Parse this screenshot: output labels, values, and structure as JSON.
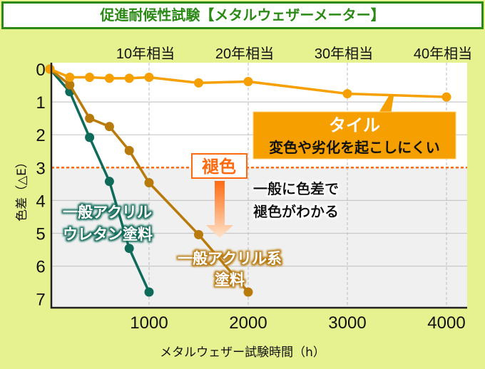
{
  "title": "促進耐候性試験【メタルウェザーメーター】",
  "chart_data": {
    "type": "line",
    "title": "促進耐候性試験【メタルウェザーメーター】",
    "xlabel": "メタルウェザー試験時間（h）",
    "ylabel": "色差（△E）",
    "xlim": [
      0,
      4200
    ],
    "ylim": [
      0,
      7
    ],
    "y_inverted": true,
    "x_ticks": [
      "1000",
      "2000",
      "3000",
      "4000"
    ],
    "x_tick_values": [
      1000,
      2000,
      3000,
      4000
    ],
    "y_ticks": [
      "0",
      "1",
      "2",
      "3",
      "4",
      "5",
      "6",
      "7"
    ],
    "top_axis_labels": [
      "10年相当",
      "20年相当",
      "30年相当",
      "40年相当"
    ],
    "grid": true,
    "threshold": {
      "value": 3,
      "label": "褪色",
      "note": "一般に色差で褪色がわかる",
      "color": "#ff6a10"
    },
    "series": [
      {
        "name": "タイル",
        "note": "変色や劣化を起こしにくい",
        "color": "#f5a000",
        "x": [
          0,
          200,
          400,
          600,
          800,
          1000,
          1500,
          2000,
          3000,
          4000
        ],
        "y": [
          0,
          0.25,
          0.25,
          0.28,
          0.28,
          0.25,
          0.42,
          0.38,
          0.75,
          0.85
        ]
      },
      {
        "name": "一般アクリル系塗料",
        "color": "#b97a0c",
        "x": [
          0,
          200,
          400,
          600,
          800,
          1000,
          1500,
          2000
        ],
        "y": [
          0,
          0.48,
          1.5,
          1.75,
          2.48,
          3.46,
          5.04,
          6.79
        ]
      },
      {
        "name": "一般アクリルウレタン塗料",
        "color": "#0e6b5a",
        "x": [
          0,
          200,
          400,
          600,
          800,
          1000
        ],
        "y": [
          0,
          0.69,
          2.08,
          3.42,
          5.46,
          6.79
        ]
      }
    ]
  },
  "labels": {
    "tile_name": "タイル",
    "tile_note": "変色や劣化を起こしにくい",
    "fade": "褪色",
    "fade_note_1": "一般に色差で",
    "fade_note_2": "褪色がわかる",
    "urethane_1": "一般アクリル",
    "urethane_2": "ウレタン塗料",
    "acrylic_1": "一般アクリル系",
    "acrylic_2": "塗料"
  }
}
